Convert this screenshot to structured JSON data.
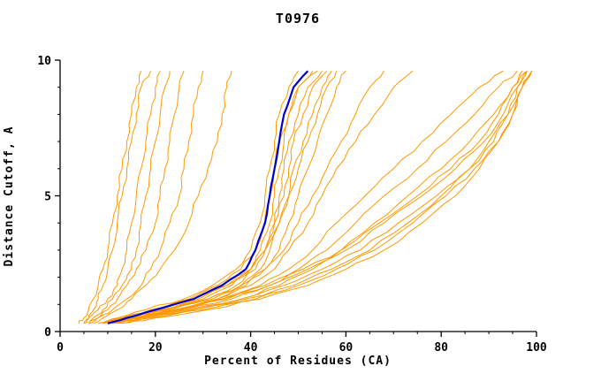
{
  "title": "T0976",
  "chart_data": {
    "type": "line",
    "title": "T0976",
    "xlabel": "Percent of Residues (CA)",
    "ylabel": "Distance Cutoff, A",
    "xlim": [
      0,
      100
    ],
    "ylim": [
      0,
      10
    ],
    "xticks": [
      0,
      20,
      40,
      60,
      80,
      100
    ],
    "yticks": [
      0,
      5,
      10
    ],
    "x_minor_step": 5,
    "y_minor_step": 1,
    "grid": false,
    "legend": "none",
    "colors": {
      "model": "#ff9900",
      "reference": "#0000cc",
      "axis": "#000000"
    },
    "cutoffs": [
      0.3,
      0.5,
      0.8,
      1.2,
      1.7,
      2.3,
      3.0,
      4.0,
      5.0,
      6.0,
      7.0,
      8.0,
      9.0,
      9.6
    ],
    "series_note": "each models[] entry lists percent-of-residues (CA) at the shared cutoffs; reference is the blue consensus curve",
    "models": [
      [
        4,
        5,
        6,
        7,
        8,
        9,
        10,
        11,
        12,
        13,
        14,
        15,
        16,
        17
      ],
      [
        5,
        6,
        7,
        8,
        9,
        10,
        11,
        12,
        13,
        14,
        15,
        16,
        17,
        19
      ],
      [
        5,
        6,
        8,
        10,
        12,
        13,
        14,
        15,
        16,
        17,
        18,
        19,
        20,
        21
      ],
      [
        6,
        7,
        9,
        11,
        13,
        15,
        16,
        17,
        18,
        19,
        20,
        21,
        22,
        23
      ],
      [
        6,
        8,
        10,
        12,
        14,
        16,
        18,
        20,
        21,
        22,
        23,
        24,
        25,
        26
      ],
      [
        6,
        8,
        11,
        14,
        17,
        19,
        21,
        23,
        25,
        26,
        27,
        28,
        29,
        30
      ],
      [
        7,
        9,
        12,
        15,
        18,
        21,
        24,
        27,
        29,
        31,
        33,
        34,
        35,
        36
      ],
      [
        8,
        12,
        18,
        26,
        32,
        37,
        40,
        42,
        43,
        44,
        45,
        46,
        48,
        50
      ],
      [
        9,
        13,
        19,
        27,
        33,
        38,
        41,
        43,
        44,
        45,
        46,
        48,
        50,
        53
      ],
      [
        10,
        15,
        22,
        30,
        36,
        40,
        42,
        44,
        45,
        46,
        47,
        48,
        50,
        54
      ],
      [
        11,
        16,
        23,
        31,
        37,
        41,
        43,
        45,
        46,
        47,
        48,
        50,
        52,
        55
      ],
      [
        9,
        14,
        21,
        29,
        35,
        40,
        43,
        45,
        47,
        48,
        49,
        51,
        53,
        56
      ],
      [
        10,
        15,
        23,
        32,
        38,
        42,
        44,
        46,
        48,
        49,
        51,
        53,
        55,
        57
      ],
      [
        8,
        13,
        20,
        28,
        35,
        40,
        43,
        46,
        48,
        50,
        52,
        54,
        56,
        58
      ],
      [
        11,
        17,
        25,
        33,
        39,
        43,
        46,
        48,
        50,
        52,
        54,
        56,
        58,
        60
      ],
      [
        9,
        14,
        22,
        31,
        38,
        43,
        47,
        50,
        53,
        56,
        59,
        62,
        65,
        68
      ],
      [
        10,
        16,
        24,
        33,
        40,
        45,
        48,
        52,
        55,
        58,
        62,
        66,
        70,
        74
      ],
      [
        10,
        15,
        24,
        34,
        42,
        48,
        53,
        58,
        64,
        70,
        76,
        82,
        88,
        93
      ],
      [
        11,
        16,
        26,
        36,
        44,
        50,
        56,
        62,
        68,
        75,
        81,
        87,
        92,
        96
      ],
      [
        12,
        18,
        28,
        38,
        46,
        53,
        59,
        66,
        73,
        80,
        86,
        91,
        95,
        98
      ],
      [
        10,
        16,
        25,
        35,
        44,
        52,
        60,
        68,
        76,
        83,
        89,
        93,
        96,
        98
      ],
      [
        11,
        17,
        27,
        38,
        47,
        55,
        63,
        71,
        79,
        86,
        91,
        94,
        97,
        99
      ],
      [
        9,
        15,
        24,
        34,
        43,
        51,
        59,
        67,
        75,
        82,
        88,
        92,
        95,
        97
      ],
      [
        12,
        19,
        30,
        41,
        50,
        58,
        66,
        74,
        81,
        87,
        92,
        95,
        97,
        99
      ],
      [
        10,
        17,
        28,
        39,
        49,
        57,
        65,
        73,
        80,
        86,
        90,
        94,
        96,
        98
      ],
      [
        13,
        20,
        31,
        42,
        52,
        60,
        68,
        76,
        83,
        88,
        92,
        95,
        97,
        99
      ]
    ],
    "reference": [
      10,
      14,
      20,
      28,
      34,
      39,
      41,
      43,
      44,
      45,
      46,
      47,
      49,
      52
    ]
  }
}
